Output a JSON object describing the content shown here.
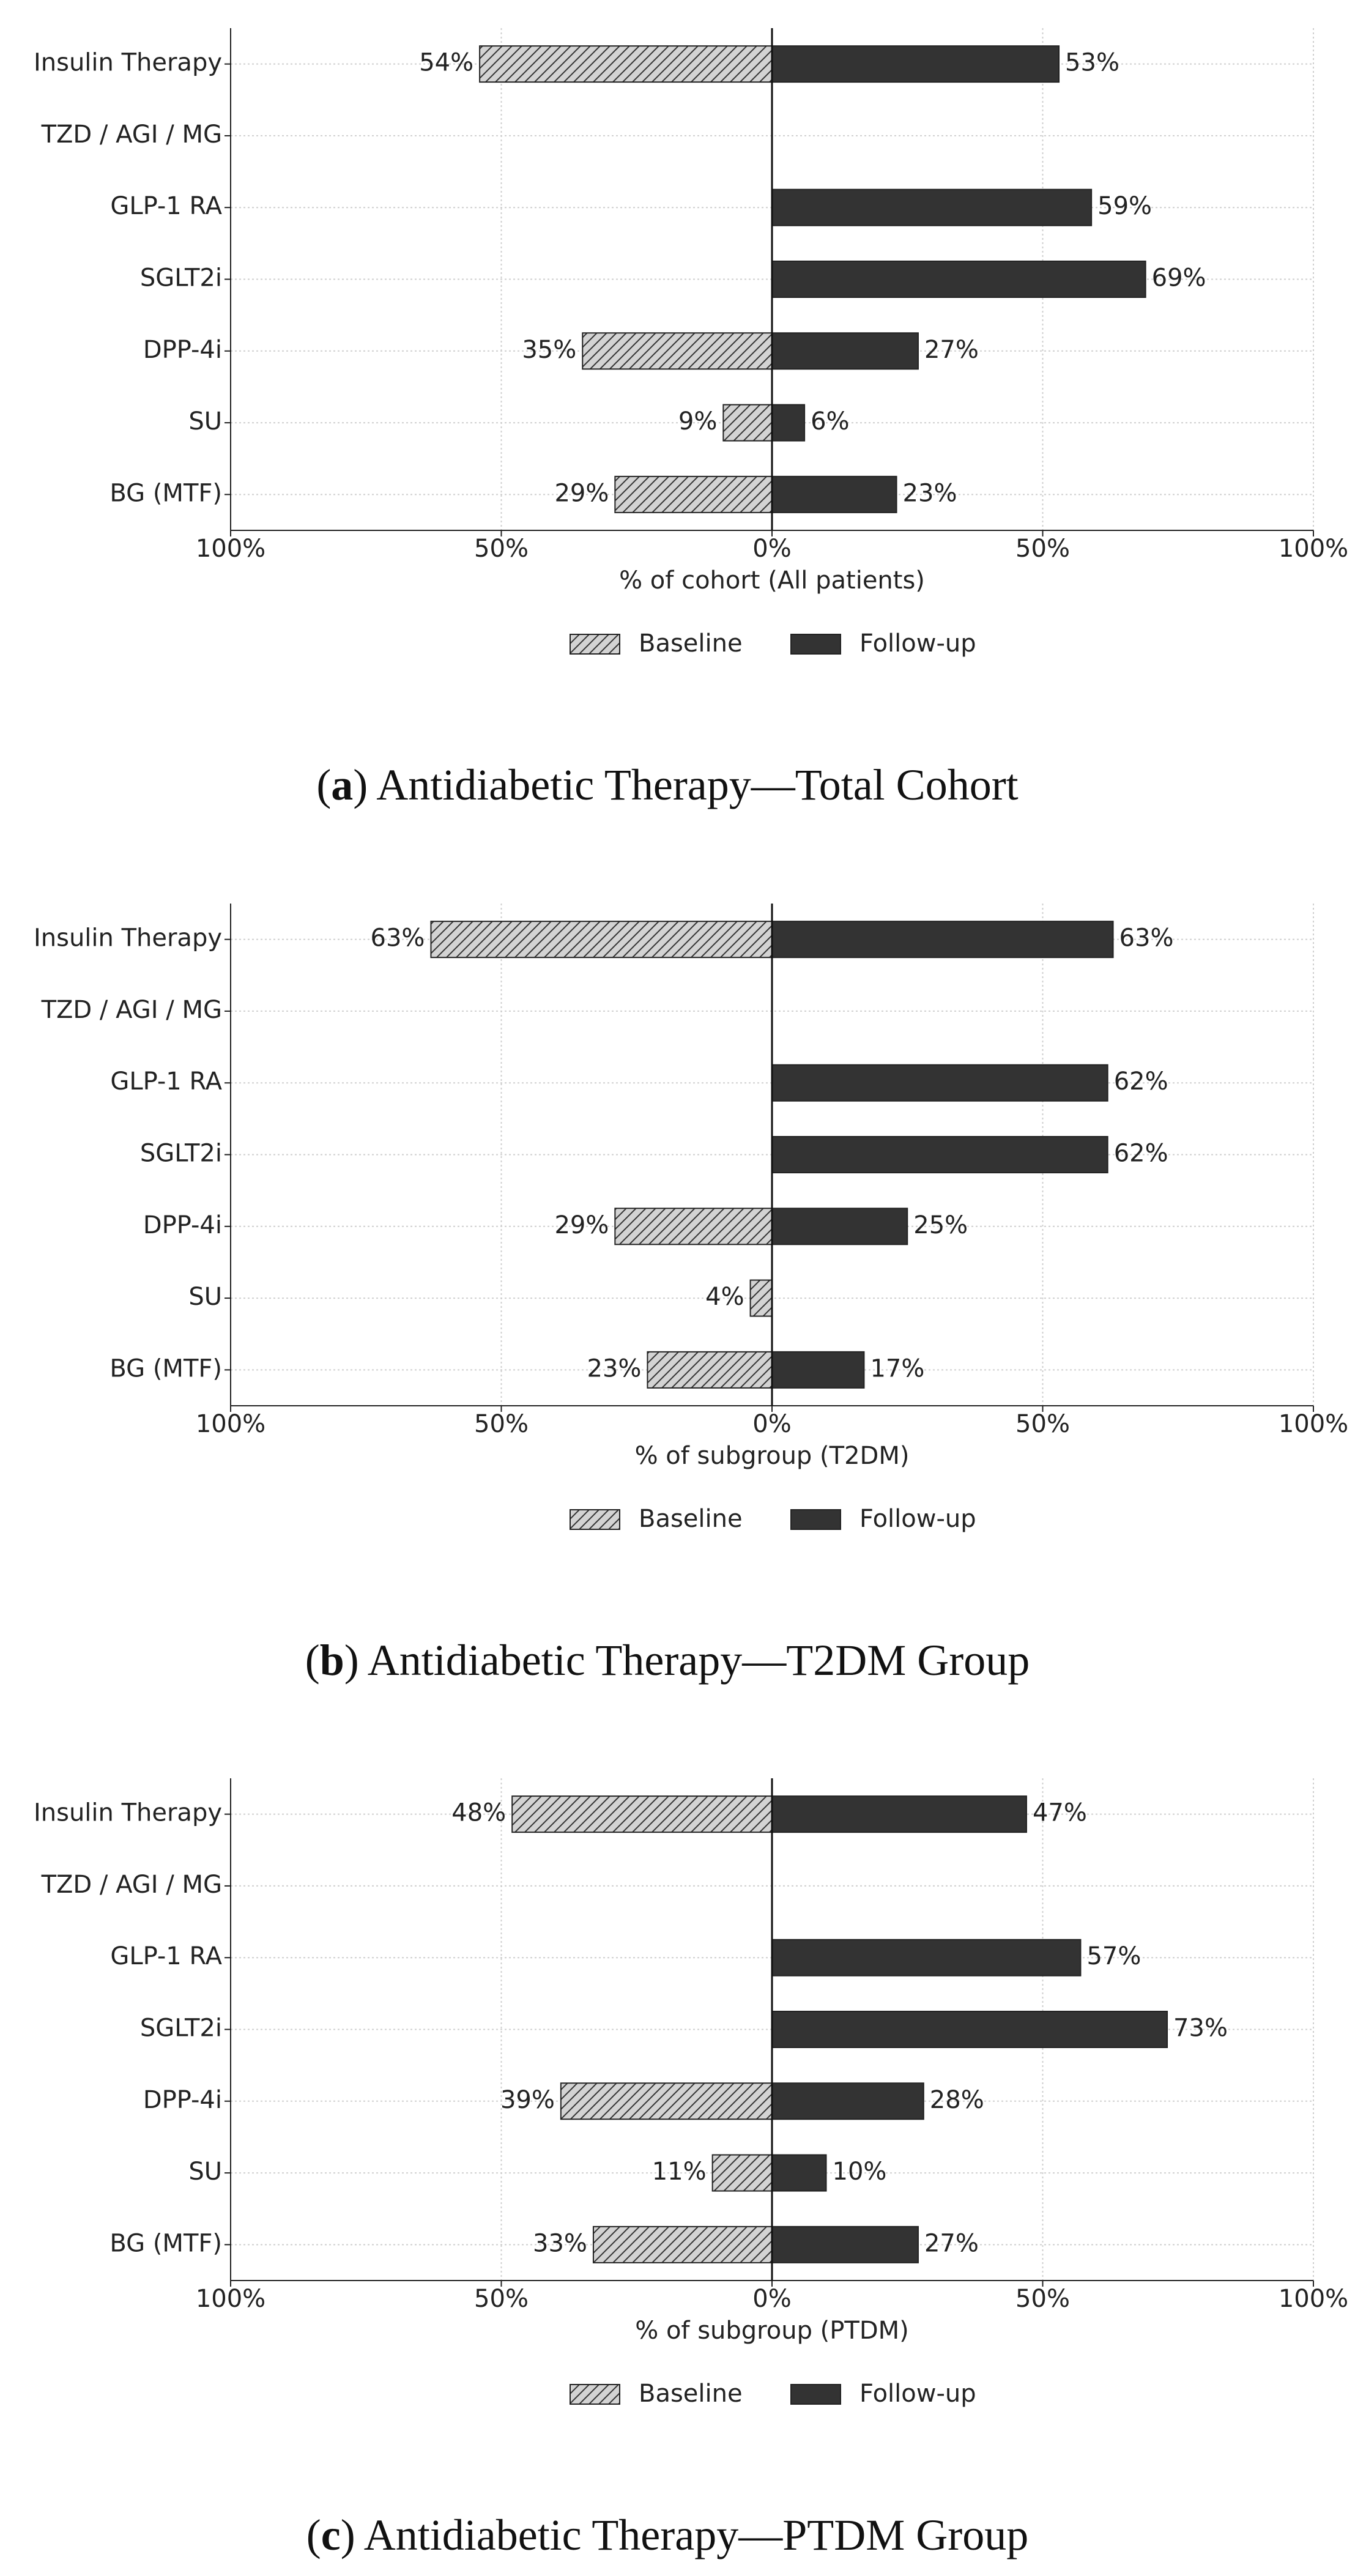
{
  "chart_data": [
    {
      "type": "bar",
      "orientation": "horizontal",
      "categories": [
        "Insulin Therapy",
        "TZD / AGI / MG",
        "GLP-1 RA",
        "SGLT2i",
        "DPP-4i",
        "SU",
        "BG (MTF)"
      ],
      "series": [
        {
          "name": "Baseline",
          "color": "#d3d3d3",
          "hatch": "///",
          "values": [
            -54,
            null,
            null,
            null,
            -35,
            -9,
            -29
          ],
          "value_labels": [
            "54%",
            null,
            null,
            null,
            "35%",
            "9%",
            "29%"
          ]
        },
        {
          "name": "Follow-up",
          "color": "#333333",
          "values": [
            53,
            null,
            59,
            69,
            27,
            6,
            23
          ],
          "value_labels": [
            "53%",
            null,
            "59%",
            "69%",
            "27%",
            "6%",
            "23%"
          ]
        }
      ],
      "xlim": [
        -100,
        100
      ],
      "xticks": [
        {
          "value": -100,
          "label": "100%"
        },
        {
          "value": -50,
          "label": "50%"
        },
        {
          "value": 0,
          "label": "0%"
        },
        {
          "value": 50,
          "label": "50%"
        },
        {
          "value": 100,
          "label": "100%"
        }
      ],
      "xlabel": "% of cohort (All patients)",
      "grid": true,
      "legend": "below",
      "caption": [
        "(",
        "a",
        ") Antidiabetic Therapy—Total Cohort"
      ]
    },
    {
      "type": "bar",
      "orientation": "horizontal",
      "categories": [
        "Insulin Therapy",
        "TZD / AGI / MG",
        "GLP-1 RA",
        "SGLT2i",
        "DPP-4i",
        "SU",
        "BG (MTF)"
      ],
      "series": [
        {
          "name": "Baseline",
          "color": "#d3d3d3",
          "hatch": "///",
          "values": [
            -63,
            null,
            null,
            null,
            -29,
            -4,
            -23
          ],
          "value_labels": [
            "63%",
            null,
            null,
            null,
            "29%",
            "4%",
            "23%"
          ]
        },
        {
          "name": "Follow-up",
          "color": "#333333",
          "values": [
            63,
            null,
            62,
            62,
            25,
            null,
            17
          ],
          "value_labels": [
            "63%",
            null,
            "62%",
            "62%",
            "25%",
            null,
            "17%"
          ]
        }
      ],
      "xlim": [
        -100,
        100
      ],
      "xticks": [
        {
          "value": -100,
          "label": "100%"
        },
        {
          "value": -50,
          "label": "50%"
        },
        {
          "value": 0,
          "label": "0%"
        },
        {
          "value": 50,
          "label": "50%"
        },
        {
          "value": 100,
          "label": "100%"
        }
      ],
      "xlabel": "% of subgroup (T2DM)",
      "grid": true,
      "legend": "below",
      "caption": [
        "(",
        "b",
        ") Antidiabetic Therapy—T2DM Group"
      ]
    },
    {
      "type": "bar",
      "orientation": "horizontal",
      "categories": [
        "Insulin Therapy",
        "TZD / AGI / MG",
        "GLP-1 RA",
        "SGLT2i",
        "DPP-4i",
        "SU",
        "BG (MTF)"
      ],
      "series": [
        {
          "name": "Baseline",
          "color": "#d3d3d3",
          "hatch": "///",
          "values": [
            -48,
            null,
            null,
            null,
            -39,
            -11,
            -33
          ],
          "value_labels": [
            "48%",
            null,
            null,
            null,
            "39%",
            "11%",
            "33%"
          ]
        },
        {
          "name": "Follow-up",
          "color": "#333333",
          "values": [
            47,
            null,
            57,
            73,
            28,
            10,
            27
          ],
          "value_labels": [
            "47%",
            null,
            "57%",
            "73%",
            "28%",
            "10%",
            "27%"
          ]
        }
      ],
      "xlim": [
        -100,
        100
      ],
      "xticks": [
        {
          "value": -100,
          "label": "100%"
        },
        {
          "value": -50,
          "label": "50%"
        },
        {
          "value": 0,
          "label": "0%"
        },
        {
          "value": 50,
          "label": "50%"
        },
        {
          "value": 100,
          "label": "100%"
        }
      ],
      "xlabel": "% of subgroup (PTDM)",
      "grid": true,
      "legend": "below",
      "caption": [
        "(",
        "c",
        ") Antidiabetic Therapy—PTDM Group"
      ]
    }
  ]
}
